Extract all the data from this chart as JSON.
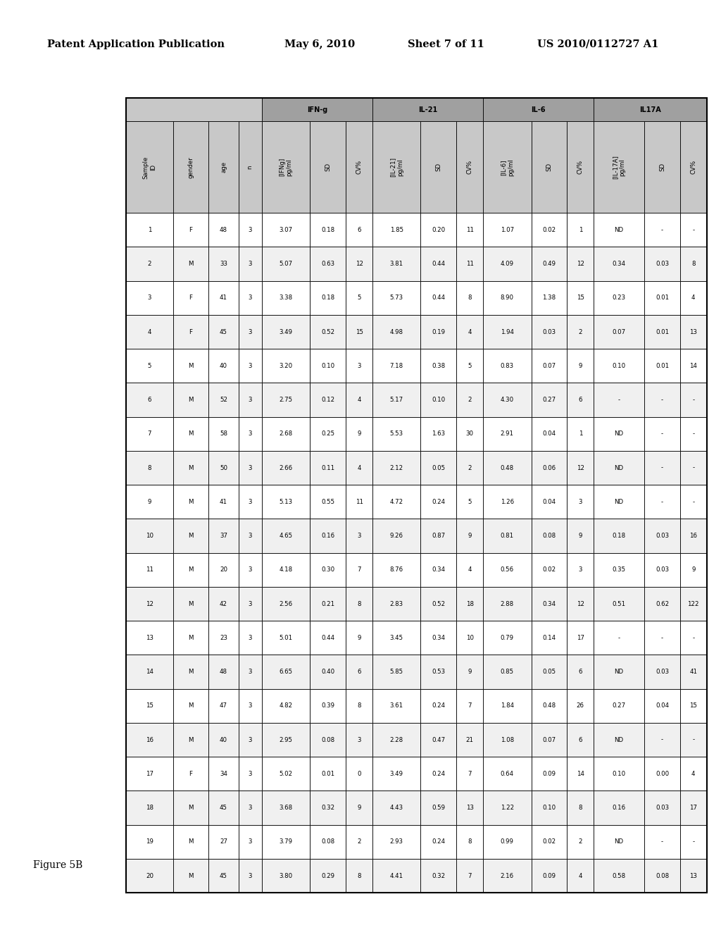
{
  "header_line1": "Patent Application Publication",
  "header_date": "May 6, 2010",
  "header_sheet": "Sheet 7 of 11",
  "header_patent": "US 2010/0112727 A1",
  "figure_label": "Figure 5B",
  "col_headers": [
    "Sample\nID",
    "gender",
    "age",
    "n",
    "[IFNg]\npg/ml",
    "SD",
    "CV%",
    "[IL-21]\npg/ml",
    "SD",
    "CV%",
    "[IL-6]\npg/ml",
    "SD",
    "CV%",
    "[IL-17A]\npg/ml",
    "SD",
    "CV%"
  ],
  "group_labels": [
    "",
    "",
    "",
    "",
    "IFN-g",
    "",
    "",
    "IL-21",
    "",
    "",
    "IL-6",
    "",
    "",
    "IL17A",
    "",
    ""
  ],
  "rows": [
    [
      "1",
      "F",
      "48",
      "3",
      "3.07",
      "0.18",
      "6",
      "1.85",
      "0.20",
      "11",
      "1.07",
      "0.02",
      "1",
      "ND",
      "-",
      "-"
    ],
    [
      "2",
      "M",
      "33",
      "3",
      "5.07",
      "0.63",
      "12",
      "3.81",
      "0.44",
      "11",
      "4.09",
      "0.49",
      "12",
      "0.34",
      "0.03",
      "8"
    ],
    [
      "3",
      "F",
      "41",
      "3",
      "3.38",
      "0.18",
      "5",
      "5.73",
      "0.44",
      "8",
      "8.90",
      "1.38",
      "15",
      "0.23",
      "0.01",
      "4"
    ],
    [
      "4",
      "F",
      "45",
      "3",
      "3.49",
      "0.52",
      "15",
      "4.98",
      "0.19",
      "4",
      "1.94",
      "0.03",
      "2",
      "0.07",
      "0.01",
      "13"
    ],
    [
      "5",
      "M",
      "40",
      "3",
      "3.20",
      "0.10",
      "3",
      "7.18",
      "0.38",
      "5",
      "0.83",
      "0.07",
      "9",
      "0.10",
      "0.01",
      "14"
    ],
    [
      "6",
      "M",
      "52",
      "3",
      "2.75",
      "0.12",
      "4",
      "5.17",
      "0.10",
      "2",
      "4.30",
      "0.27",
      "6",
      "-",
      "-",
      "-"
    ],
    [
      "7",
      "M",
      "58",
      "3",
      "2.68",
      "0.25",
      "9",
      "5.53",
      "1.63",
      "30",
      "2.91",
      "0.04",
      "1",
      "ND",
      "-",
      "-"
    ],
    [
      "8",
      "M",
      "50",
      "3",
      "2.66",
      "0.11",
      "4",
      "2.12",
      "0.05",
      "2",
      "0.48",
      "0.06",
      "12",
      "ND",
      "-",
      "-"
    ],
    [
      "9",
      "M",
      "41",
      "3",
      "5.13",
      "0.55",
      "11",
      "4.72",
      "0.24",
      "5",
      "1.26",
      "0.04",
      "3",
      "ND",
      "-",
      "-"
    ],
    [
      "10",
      "M",
      "37",
      "3",
      "4.65",
      "0.16",
      "3",
      "9.26",
      "0.87",
      "9",
      "0.81",
      "0.08",
      "9",
      "0.18",
      "0.03",
      "16"
    ],
    [
      "11",
      "M",
      "20",
      "3",
      "4.18",
      "0.30",
      "7",
      "8.76",
      "0.34",
      "4",
      "0.56",
      "0.02",
      "3",
      "0.35",
      "0.03",
      "9"
    ],
    [
      "12",
      "M",
      "42",
      "3",
      "2.56",
      "0.21",
      "8",
      "2.83",
      "0.52",
      "18",
      "2.88",
      "0.34",
      "12",
      "0.51",
      "0.62",
      "122"
    ],
    [
      "13",
      "M",
      "23",
      "3",
      "5.01",
      "0.44",
      "9",
      "3.45",
      "0.34",
      "10",
      "0.79",
      "0.14",
      "17",
      "-",
      "-",
      "-"
    ],
    [
      "14",
      "M",
      "48",
      "3",
      "6.65",
      "0.40",
      "6",
      "5.85",
      "0.53",
      "9",
      "0.85",
      "0.05",
      "6",
      "ND",
      "0.03",
      "41"
    ],
    [
      "15",
      "M",
      "47",
      "3",
      "4.82",
      "0.39",
      "8",
      "3.61",
      "0.24",
      "7",
      "1.84",
      "0.48",
      "26",
      "0.27",
      "0.04",
      "15"
    ],
    [
      "16",
      "M",
      "40",
      "3",
      "2.95",
      "0.08",
      "3",
      "2.28",
      "0.47",
      "21",
      "1.08",
      "0.07",
      "6",
      "ND",
      "-",
      "-"
    ],
    [
      "17",
      "F",
      "34",
      "3",
      "5.02",
      "0.01",
      "0",
      "3.49",
      "0.24",
      "7",
      "0.64",
      "0.09",
      "14",
      "0.10",
      "0.00",
      "4"
    ],
    [
      "18",
      "M",
      "45",
      "3",
      "3.68",
      "0.32",
      "9",
      "4.43",
      "0.59",
      "13",
      "1.22",
      "0.10",
      "8",
      "0.16",
      "0.03",
      "17"
    ],
    [
      "19",
      "M",
      "27",
      "3",
      "3.79",
      "0.08",
      "2",
      "2.93",
      "0.24",
      "8",
      "0.99",
      "0.02",
      "2",
      "ND",
      "-",
      "-"
    ],
    [
      "20",
      "M",
      "45",
      "3",
      "3.80",
      "0.29",
      "8",
      "4.41",
      "0.32",
      "7",
      "2.16",
      "0.09",
      "4",
      "0.58",
      "0.08",
      "13"
    ]
  ],
  "bg_color": "#ffffff",
  "header_bg": "#c8c8c8",
  "row_bg_even": "#ffffff",
  "row_bg_odd": "#f0f0f0",
  "group_header_bg": "#a0a0a0",
  "border_color": "#000000",
  "group_spans": [
    {
      "label": "",
      "start": 0,
      "end": 3
    },
    {
      "label": "IFN-g",
      "start": 4,
      "end": 6
    },
    {
      "label": "IL-21",
      "start": 7,
      "end": 9
    },
    {
      "label": "IL-6",
      "start": 10,
      "end": 12
    },
    {
      "label": "IL17A",
      "start": 13,
      "end": 15
    }
  ]
}
